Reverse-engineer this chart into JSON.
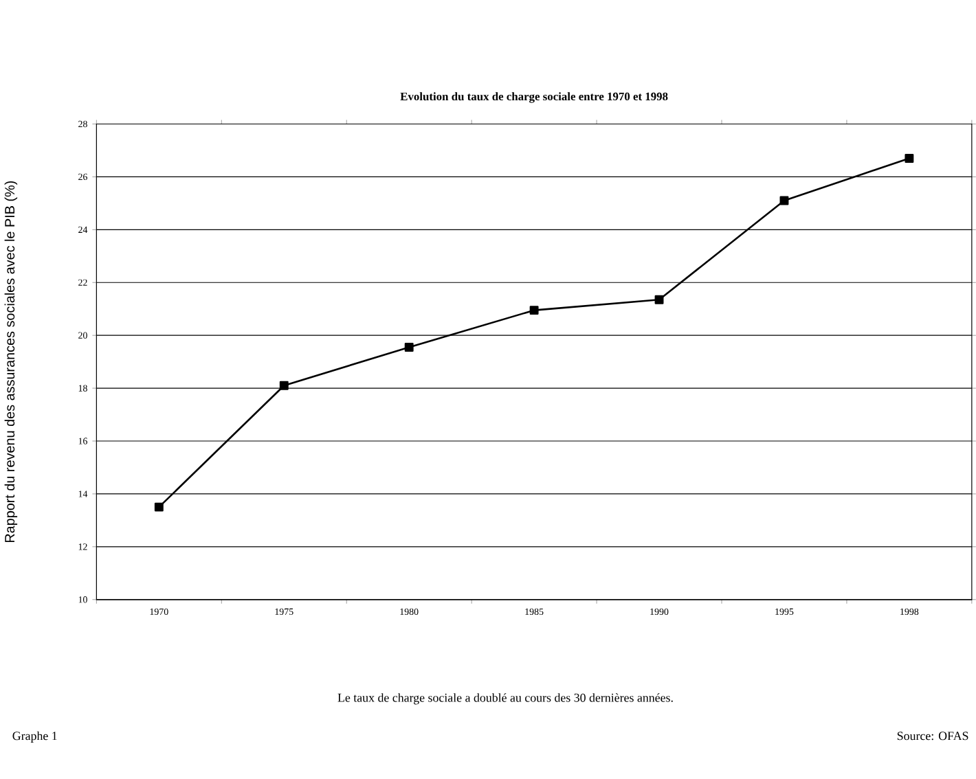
{
  "chart_data": {
    "type": "line",
    "title": "Evolution du taux de charge sociale entre 1970 et 1998",
    "ylabel": "Rapport du revenu des assurances sociales avec le PIB (%)",
    "categories": [
      "1970",
      "1975",
      "1980",
      "1985",
      "1990",
      "1995",
      "1998"
    ],
    "values": [
      13.5,
      18.1,
      19.55,
      20.95,
      21.35,
      25.1,
      26.7
    ],
    "color": "#000000",
    "marker": "square",
    "line_style": "solid",
    "ylim": [
      10,
      28
    ],
    "yticks": [
      10,
      12,
      14,
      16,
      18,
      20,
      22,
      24,
      26,
      28
    ],
    "grid": "y",
    "annotations": [
      "Le taux de charge sociale a doublé au cours des 30 dernières années.",
      "Graphe 1",
      "Source: OFAS"
    ]
  }
}
